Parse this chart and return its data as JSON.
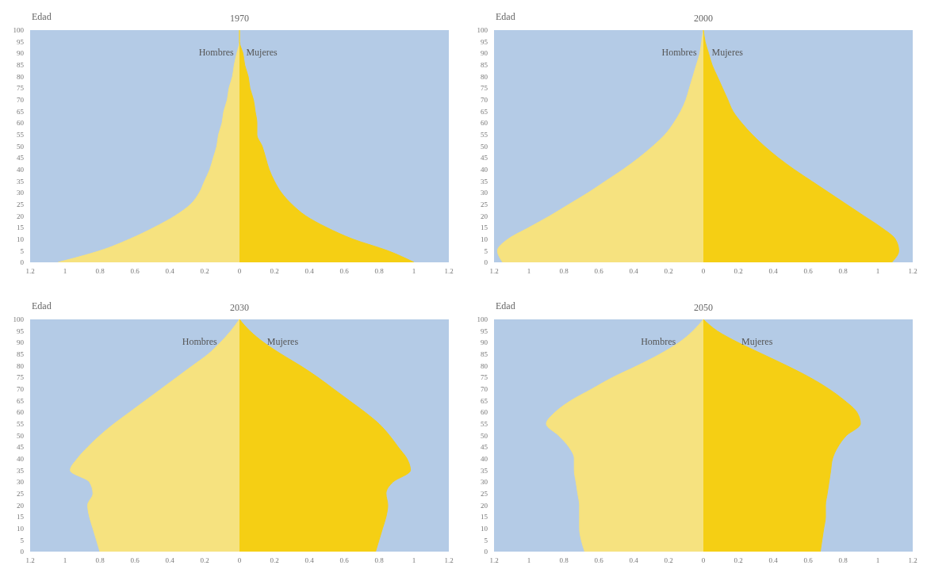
{
  "chart_data": [
    {
      "type": "area",
      "orientation": "horizontal",
      "title": "1970",
      "ylabel": "Edad",
      "x": [
        0,
        5,
        10,
        15,
        20,
        25,
        30,
        35,
        40,
        45,
        50,
        55,
        60,
        65,
        70,
        75,
        80,
        85,
        90,
        95,
        100
      ],
      "series": [
        {
          "name": "Hombres",
          "color": "#f6e27f",
          "values": [
            -1.04,
            -0.8,
            -0.63,
            -0.49,
            -0.37,
            -0.28,
            -0.23,
            -0.2,
            -0.17,
            -0.15,
            -0.13,
            -0.12,
            -0.1,
            -0.09,
            -0.07,
            -0.06,
            -0.04,
            -0.03,
            -0.015,
            0,
            0
          ]
        },
        {
          "name": "Mujeres",
          "color": "#f5cf14",
          "values": [
            1.0,
            0.85,
            0.65,
            0.5,
            0.38,
            0.3,
            0.24,
            0.2,
            0.17,
            0.15,
            0.13,
            0.1,
            0.1,
            0.09,
            0.08,
            0.06,
            0.05,
            0.03,
            0.02,
            0,
            0
          ]
        }
      ],
      "xlim": [
        -1.2,
        1.2
      ],
      "xticks": [
        {
          "value": -1.2,
          "label": "1.2"
        },
        {
          "value": -1,
          "label": "1"
        },
        {
          "value": -0.8,
          "label": "0.8"
        },
        {
          "value": -0.6,
          "label": "0.6"
        },
        {
          "value": -0.4,
          "label": "0.4"
        },
        {
          "value": -0.2,
          "label": "0.2"
        },
        0,
        0.2,
        0.4,
        0.6,
        0.8,
        1,
        1.2
      ],
      "ylim": [
        0,
        100
      ],
      "yticks": [
        0,
        5,
        10,
        15,
        20,
        25,
        30,
        35,
        40,
        45,
        50,
        55,
        60,
        65,
        70,
        75,
        80,
        85,
        90,
        95,
        100
      ]
    },
    {
      "type": "area",
      "orientation": "horizontal",
      "title": "2000",
      "ylabel": "Edad",
      "x": [
        0,
        5,
        10,
        15,
        20,
        25,
        30,
        35,
        40,
        45,
        50,
        55,
        60,
        65,
        70,
        75,
        80,
        85,
        90,
        95,
        100
      ],
      "series": [
        {
          "name": "Hombres",
          "color": "#f6e27f",
          "values": [
            -1.15,
            -1.18,
            -1.12,
            -1.0,
            -0.88,
            -0.77,
            -0.66,
            -0.56,
            -0.46,
            -0.37,
            -0.29,
            -0.22,
            -0.17,
            -0.13,
            -0.1,
            -0.08,
            -0.06,
            -0.04,
            -0.02,
            -0.01,
            0
          ]
        },
        {
          "name": "Mujeres",
          "color": "#f5cf14",
          "values": [
            1.08,
            1.12,
            1.1,
            1.02,
            0.92,
            0.82,
            0.72,
            0.62,
            0.52,
            0.43,
            0.35,
            0.28,
            0.22,
            0.17,
            0.14,
            0.11,
            0.08,
            0.05,
            0.03,
            0.01,
            0
          ]
        }
      ],
      "xlim": [
        -1.2,
        1.2
      ],
      "xticks": [
        {
          "value": -1.2,
          "label": "1.2"
        },
        {
          "value": -1,
          "label": "1"
        },
        {
          "value": -0.8,
          "label": "0.8"
        },
        {
          "value": -0.6,
          "label": "0.6"
        },
        {
          "value": -0.4,
          "label": "0.4"
        },
        {
          "value": -0.2,
          "label": "0.2"
        },
        0,
        0.2,
        0.4,
        0.6,
        0.8,
        1,
        1.2
      ],
      "ylim": [
        0,
        100
      ],
      "yticks": [
        0,
        5,
        10,
        15,
        20,
        25,
        30,
        35,
        40,
        45,
        50,
        55,
        60,
        65,
        70,
        75,
        80,
        85,
        90,
        95,
        100
      ]
    },
    {
      "type": "area",
      "orientation": "horizontal",
      "title": "2030",
      "ylabel": "Edad",
      "x": [
        0,
        5,
        10,
        15,
        20,
        25,
        30,
        35,
        40,
        45,
        50,
        55,
        60,
        65,
        70,
        75,
        80,
        85,
        90,
        95,
        100
      ],
      "series": [
        {
          "name": "Hombres",
          "color": "#f6e27f",
          "values": [
            -0.8,
            -0.82,
            -0.84,
            -0.86,
            -0.87,
            -0.84,
            -0.86,
            -0.97,
            -0.93,
            -0.87,
            -0.8,
            -0.72,
            -0.63,
            -0.54,
            -0.45,
            -0.36,
            -0.27,
            -0.18,
            -0.11,
            -0.05,
            0
          ]
        },
        {
          "name": "Mujeres",
          "color": "#f5cf14",
          "values": [
            0.78,
            0.8,
            0.82,
            0.84,
            0.85,
            0.84,
            0.88,
            0.98,
            0.96,
            0.91,
            0.86,
            0.8,
            0.72,
            0.63,
            0.54,
            0.45,
            0.35,
            0.24,
            0.14,
            0.06,
            0
          ]
        }
      ],
      "xlim": [
        -1.2,
        1.2
      ],
      "xticks": [
        {
          "value": -1.2,
          "label": "1.2"
        },
        {
          "value": -1,
          "label": "1"
        },
        {
          "value": -0.8,
          "label": "0.8"
        },
        {
          "value": -0.6,
          "label": "0.6"
        },
        {
          "value": -0.4,
          "label": "0.4"
        },
        {
          "value": -0.2,
          "label": "0.2"
        },
        0,
        0.2,
        0.4,
        0.6,
        0.8,
        1,
        1.2
      ],
      "ylim": [
        0,
        100
      ],
      "yticks": [
        0,
        5,
        10,
        15,
        20,
        25,
        30,
        35,
        40,
        45,
        50,
        55,
        60,
        65,
        70,
        75,
        80,
        85,
        90,
        95,
        100
      ]
    },
    {
      "type": "area",
      "orientation": "horizontal",
      "title": "2050",
      "ylabel": "Edad",
      "x": [
        0,
        5,
        10,
        15,
        20,
        25,
        30,
        35,
        40,
        45,
        50,
        55,
        60,
        65,
        70,
        75,
        80,
        85,
        90,
        95,
        100
      ],
      "series": [
        {
          "name": "Hombres",
          "color": "#f6e27f",
          "values": [
            -0.68,
            -0.7,
            -0.71,
            -0.71,
            -0.71,
            -0.72,
            -0.73,
            -0.74,
            -0.74,
            -0.77,
            -0.83,
            -0.9,
            -0.85,
            -0.76,
            -0.64,
            -0.52,
            -0.38,
            -0.25,
            -0.14,
            -0.06,
            0
          ]
        },
        {
          "name": "Mujeres",
          "color": "#f5cf14",
          "values": [
            0.67,
            0.68,
            0.69,
            0.7,
            0.7,
            0.71,
            0.72,
            0.73,
            0.74,
            0.77,
            0.82,
            0.9,
            0.88,
            0.81,
            0.72,
            0.61,
            0.48,
            0.34,
            0.2,
            0.08,
            0
          ]
        }
      ],
      "xlim": [
        -1.2,
        1.2
      ],
      "xticks": [
        {
          "value": -1.2,
          "label": "1.2"
        },
        {
          "value": -1,
          "label": "1"
        },
        {
          "value": -0.8,
          "label": "0.8"
        },
        {
          "value": -0.6,
          "label": "0.6"
        },
        {
          "value": -0.4,
          "label": "0.4"
        },
        {
          "value": -0.2,
          "label": "0.2"
        },
        0,
        0.2,
        0.4,
        0.6,
        0.8,
        1,
        1.2
      ],
      "ylim": [
        0,
        100
      ],
      "yticks": [
        0,
        5,
        10,
        15,
        20,
        25,
        30,
        35,
        40,
        45,
        50,
        55,
        60,
        65,
        70,
        75,
        80,
        85,
        90,
        95,
        100
      ]
    }
  ]
}
